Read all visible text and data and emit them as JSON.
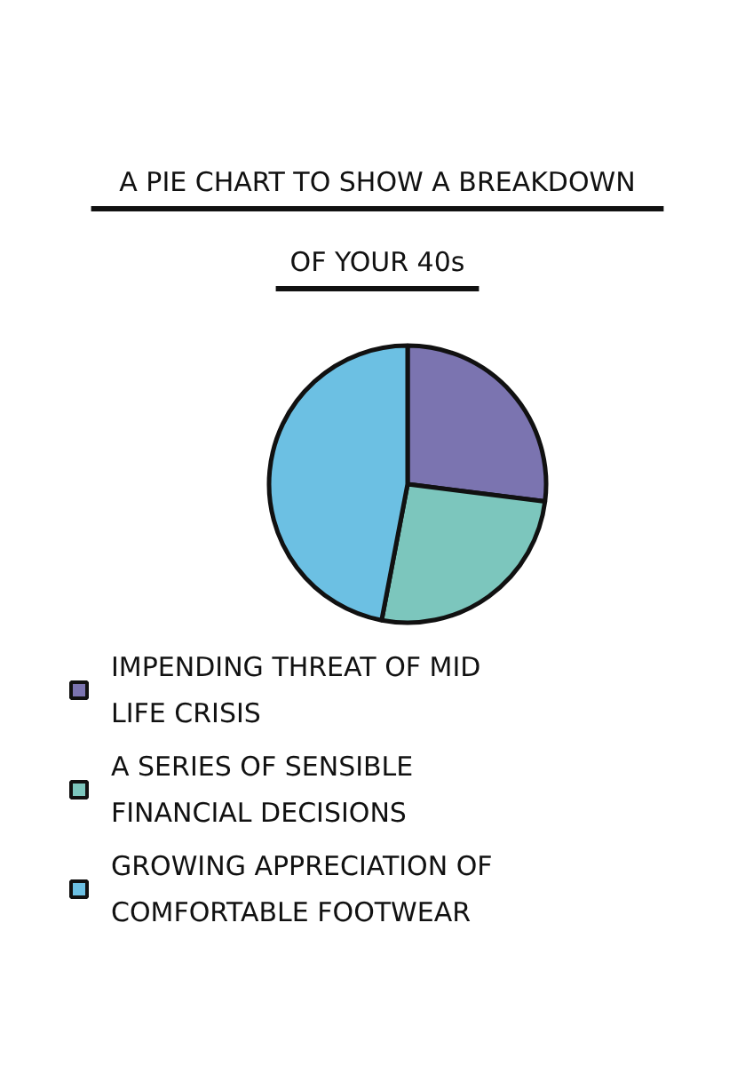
{
  "chart_data": {
    "type": "pie",
    "title": "A PIE CHART TO SHOW A BREAKDOWN OF YOUR 40s",
    "categories": [
      "IMPENDING THREAT OF MID LIFE CRISIS",
      "A SERIES OF SENSIBLE FINANCIAL DECISIONS",
      "GROWING APPRECIATION OF COMFORTABLE FOOTWEAR"
    ],
    "values": [
      27,
      26,
      47
    ],
    "colors": [
      "#7b74b0",
      "#7cc6bd",
      "#6cc0e3"
    ],
    "legend": "bottom"
  }
}
